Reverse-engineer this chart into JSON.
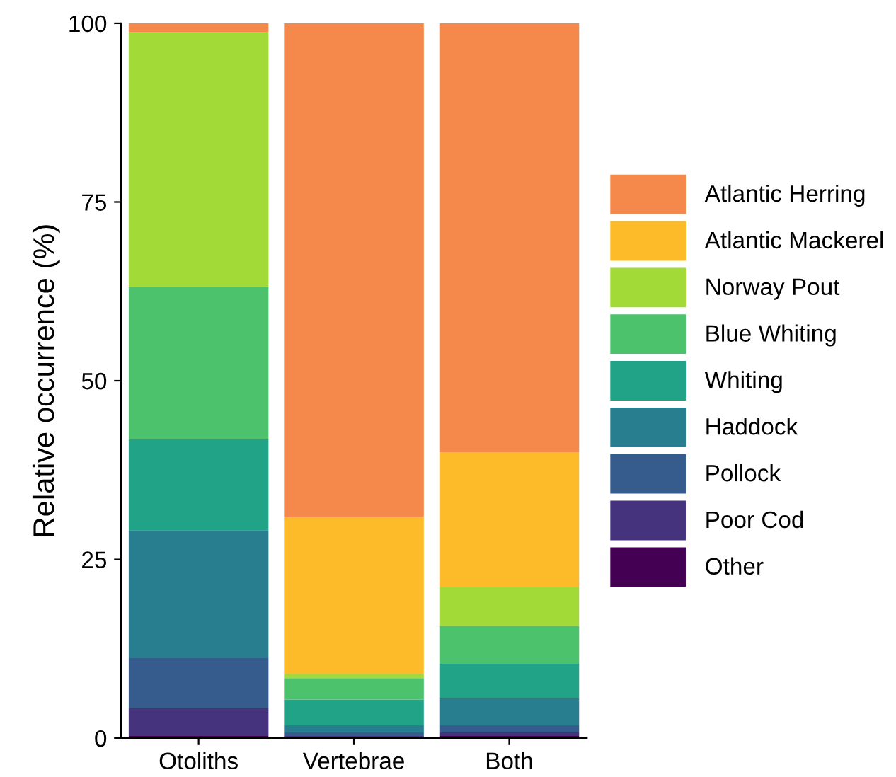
{
  "chart_data": {
    "type": "bar",
    "stacked": true,
    "ylabel": "Relative occurrence (%)",
    "categories": [
      "Otoliths",
      "Vertebrae",
      "Both"
    ],
    "ylim": [
      0,
      100
    ],
    "yticks": [
      0,
      25,
      50,
      75,
      100
    ],
    "grid": false,
    "legend": "right",
    "series": [
      {
        "name": "Other",
        "color": "#440154",
        "values": [
          0.3,
          null,
          0.3
        ]
      },
      {
        "name": "Poor Cod",
        "color": "#46337e",
        "values": [
          3.9,
          0.3,
          0.5
        ]
      },
      {
        "name": "Pollock",
        "color": "#365c8d",
        "values": [
          7.0,
          0.5,
          1.0
        ]
      },
      {
        "name": "Haddock",
        "color": "#287d8e",
        "values": [
          17.9,
          1.0,
          3.8
        ]
      },
      {
        "name": "Whiting",
        "color": "#20a386",
        "values": [
          12.7,
          3.6,
          4.8
        ]
      },
      {
        "name": "Blue Whiting",
        "color": "#4cc26c",
        "values": [
          21.3,
          3.0,
          5.3
        ]
      },
      {
        "name": "Norway Pout",
        "color": "#a2da37",
        "values": [
          35.7,
          0.6,
          5.4
        ]
      },
      {
        "name": "Atlantic Mackerel",
        "color": "#fdbb2a",
        "values": [
          0,
          21.9,
          18.9
        ]
      },
      {
        "name": "Atlantic Herring",
        "color": "#f4894b",
        "values": [
          1.2,
          69.1,
          60.0
        ]
      }
    ]
  }
}
